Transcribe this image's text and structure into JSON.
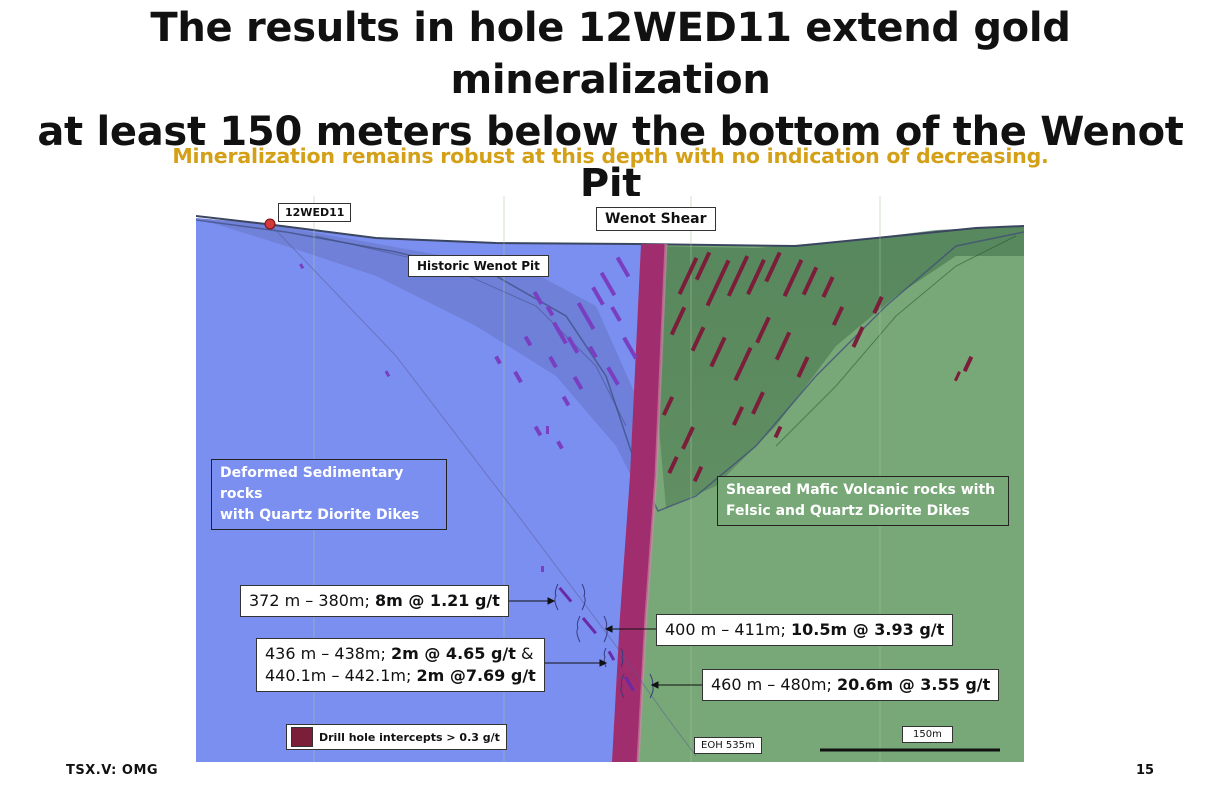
{
  "slide": {
    "title_line1": "The results in hole 12WED11 extend gold mineralization",
    "title_line2": "at least 150 meters below the bottom of the Wenot Pit",
    "subtitle": "Mineralization remains robust at this depth with no indication of decreasing.",
    "footer_ticker": "TSX.V: OMG",
    "page_number": "15"
  },
  "diagram": {
    "hole_label": "12WED11",
    "shear_label": "Wenot Shear",
    "pit_label": "Historic Wenot Pit",
    "rock_left_line1": "Deformed Sedimentary rocks",
    "rock_left_line2": "with Quartz Diorite Dikes",
    "rock_right_line1": "Sheared Mafic Volcanic rocks with",
    "rock_right_line2": "Felsic and Quartz Diorite  Dikes",
    "legend_label": "Drill hole intercepts > 0.3 g/t",
    "eoh_label": "EOH 535m",
    "scale_label": "150m",
    "colors": {
      "sedimentary": "#7b8ff0",
      "volcanic": "#78a877",
      "shear": "#a02d6e",
      "intercepts": "#7a1e3a"
    }
  },
  "intercepts": [
    {
      "range": "372 m – 380m; ",
      "result": "8m @ 1.21 g/t"
    },
    {
      "range": "400 m – 411m; ",
      "result": "10.5m @ 3.93 g/t"
    },
    {
      "range": "436 m – 438m; ",
      "result": "2m @ 4.65 g/t",
      "suffix": " &"
    },
    {
      "range": "440.1m – 442.1m; ",
      "result": "2m @7.69 g/t"
    },
    {
      "range": "460 m – 480m; ",
      "result": "20.6m @ 3.55 g/t"
    }
  ]
}
